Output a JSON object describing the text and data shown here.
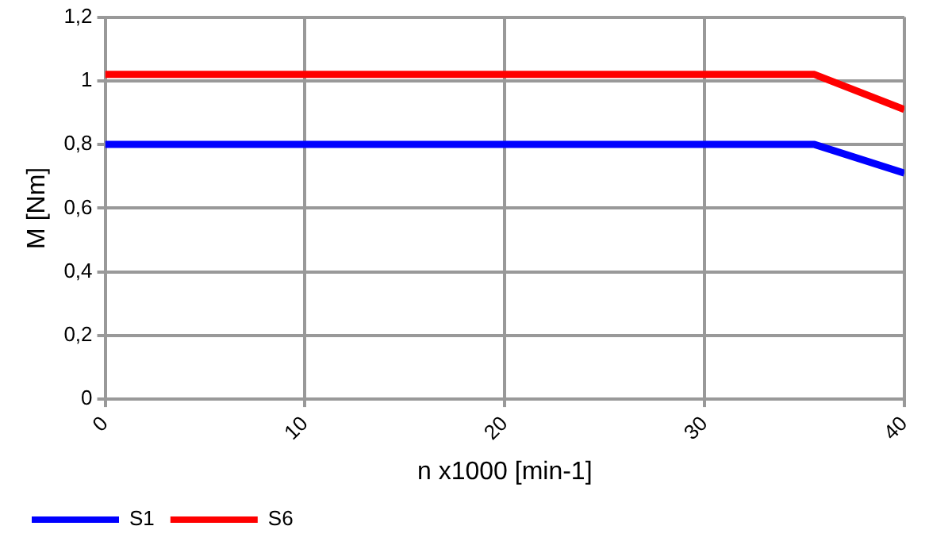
{
  "chart_data": {
    "type": "line",
    "xlabel": "n x1000 [min-1]",
    "ylabel": "M [Nm]",
    "x": [
      0,
      35.5,
      40
    ],
    "series": [
      {
        "name": "S1",
        "color": "#0000ff",
        "values": [
          0.8,
          0.8,
          0.71
        ]
      },
      {
        "name": "S6",
        "color": "#ff0000",
        "values": [
          1.02,
          1.02,
          0.91
        ]
      }
    ],
    "xlim": [
      0,
      40
    ],
    "xticks": [
      0,
      10,
      20,
      30,
      40
    ],
    "ylim": [
      0,
      1.2
    ],
    "yticks": [
      0,
      {
        "value": 0.2,
        "label": "0,2"
      },
      {
        "value": 0.4,
        "label": "0,4"
      },
      {
        "value": 0.6,
        "label": "0,6"
      },
      {
        "value": 0.8,
        "label": "0,8"
      },
      1,
      {
        "value": 1.2,
        "label": "1,2"
      }
    ],
    "grid": true,
    "legend": "bottom left",
    "marker": "none",
    "line_style": "solid"
  }
}
